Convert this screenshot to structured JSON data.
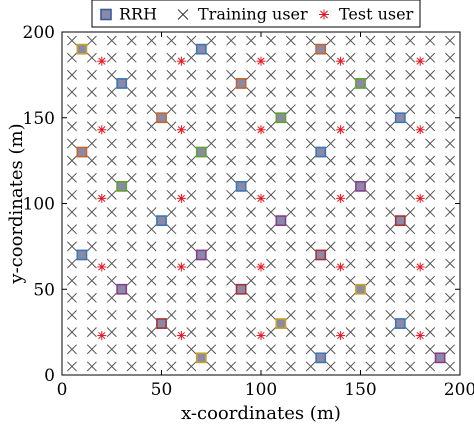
{
  "chart_data": {
    "type": "scatter",
    "title": "",
    "xlabel": "x-coordinates (m)",
    "ylabel": "y-coordinates (m)",
    "xlim": [
      0,
      200
    ],
    "ylim": [
      0,
      200
    ],
    "xticks": [
      0,
      50,
      100,
      150,
      200
    ],
    "yticks": [
      0,
      50,
      100,
      150,
      200
    ],
    "grid": false,
    "legend_position": "top",
    "series": [
      {
        "name": "RRH",
        "marker": "square",
        "color": "#8a8aa8",
        "points": [
          {
            "x": 10,
            "y": 190,
            "edge": "#c9a227"
          },
          {
            "x": 70,
            "y": 190,
            "edge": "#3c78b4"
          },
          {
            "x": 130,
            "y": 190,
            "edge": "#c8642d"
          },
          {
            "x": 30,
            "y": 170,
            "edge": "#3c78b4"
          },
          {
            "x": 90,
            "y": 170,
            "edge": "#c8642d"
          },
          {
            "x": 150,
            "y": 170,
            "edge": "#5ea52d"
          },
          {
            "x": 50,
            "y": 150,
            "edge": "#c8642d"
          },
          {
            "x": 110,
            "y": 150,
            "edge": "#5ea52d"
          },
          {
            "x": 170,
            "y": 150,
            "edge": "#3c78b4"
          },
          {
            "x": 10,
            "y": 130,
            "edge": "#c8642d"
          },
          {
            "x": 70,
            "y": 130,
            "edge": "#5ea52d"
          },
          {
            "x": 130,
            "y": 130,
            "edge": "#3c78b4"
          },
          {
            "x": 30,
            "y": 110,
            "edge": "#5ea52d"
          },
          {
            "x": 90,
            "y": 110,
            "edge": "#3c78b4"
          },
          {
            "x": 150,
            "y": 110,
            "edge": "#8c3c8c"
          },
          {
            "x": 50,
            "y": 90,
            "edge": "#3c78b4"
          },
          {
            "x": 110,
            "y": 90,
            "edge": "#8c3c8c"
          },
          {
            "x": 170,
            "y": 90,
            "edge": "#a83232"
          },
          {
            "x": 10,
            "y": 70,
            "edge": "#3c78b4"
          },
          {
            "x": 70,
            "y": 70,
            "edge": "#8c3c8c"
          },
          {
            "x": 130,
            "y": 70,
            "edge": "#a83232"
          },
          {
            "x": 30,
            "y": 50,
            "edge": "#8c3c8c"
          },
          {
            "x": 90,
            "y": 50,
            "edge": "#a83232"
          },
          {
            "x": 150,
            "y": 50,
            "edge": "#c9a227"
          },
          {
            "x": 50,
            "y": 30,
            "edge": "#a83232"
          },
          {
            "x": 110,
            "y": 30,
            "edge": "#c9a227"
          },
          {
            "x": 170,
            "y": 30,
            "edge": "#3c78b4"
          },
          {
            "x": 70,
            "y": 10,
            "edge": "#c9a227"
          },
          {
            "x": 130,
            "y": 10,
            "edge": "#3c78b4"
          },
          {
            "x": 190,
            "y": 10,
            "edge": "#8c3c8c"
          }
        ]
      },
      {
        "name": "Training user",
        "marker": "x",
        "color": "#555555",
        "grid": {
          "start": 5,
          "end": 195,
          "step": 10
        }
      },
      {
        "name": "Test user",
        "marker": "asterisk",
        "color": "#e8141e",
        "points": [
          {
            "x": 20,
            "y": 183
          },
          {
            "x": 60,
            "y": 183
          },
          {
            "x": 100,
            "y": 183
          },
          {
            "x": 140,
            "y": 183
          },
          {
            "x": 180,
            "y": 183
          },
          {
            "x": 20,
            "y": 143
          },
          {
            "x": 60,
            "y": 143
          },
          {
            "x": 100,
            "y": 143
          },
          {
            "x": 140,
            "y": 143
          },
          {
            "x": 180,
            "y": 143
          },
          {
            "x": 20,
            "y": 103
          },
          {
            "x": 60,
            "y": 103
          },
          {
            "x": 100,
            "y": 103
          },
          {
            "x": 140,
            "y": 103
          },
          {
            "x": 180,
            "y": 103
          },
          {
            "x": 20,
            "y": 63
          },
          {
            "x": 60,
            "y": 63
          },
          {
            "x": 100,
            "y": 63
          },
          {
            "x": 140,
            "y": 63
          },
          {
            "x": 180,
            "y": 63
          },
          {
            "x": 20,
            "y": 23
          },
          {
            "x": 60,
            "y": 23
          },
          {
            "x": 100,
            "y": 23
          },
          {
            "x": 140,
            "y": 23
          },
          {
            "x": 180,
            "y": 23
          }
        ]
      }
    ]
  }
}
